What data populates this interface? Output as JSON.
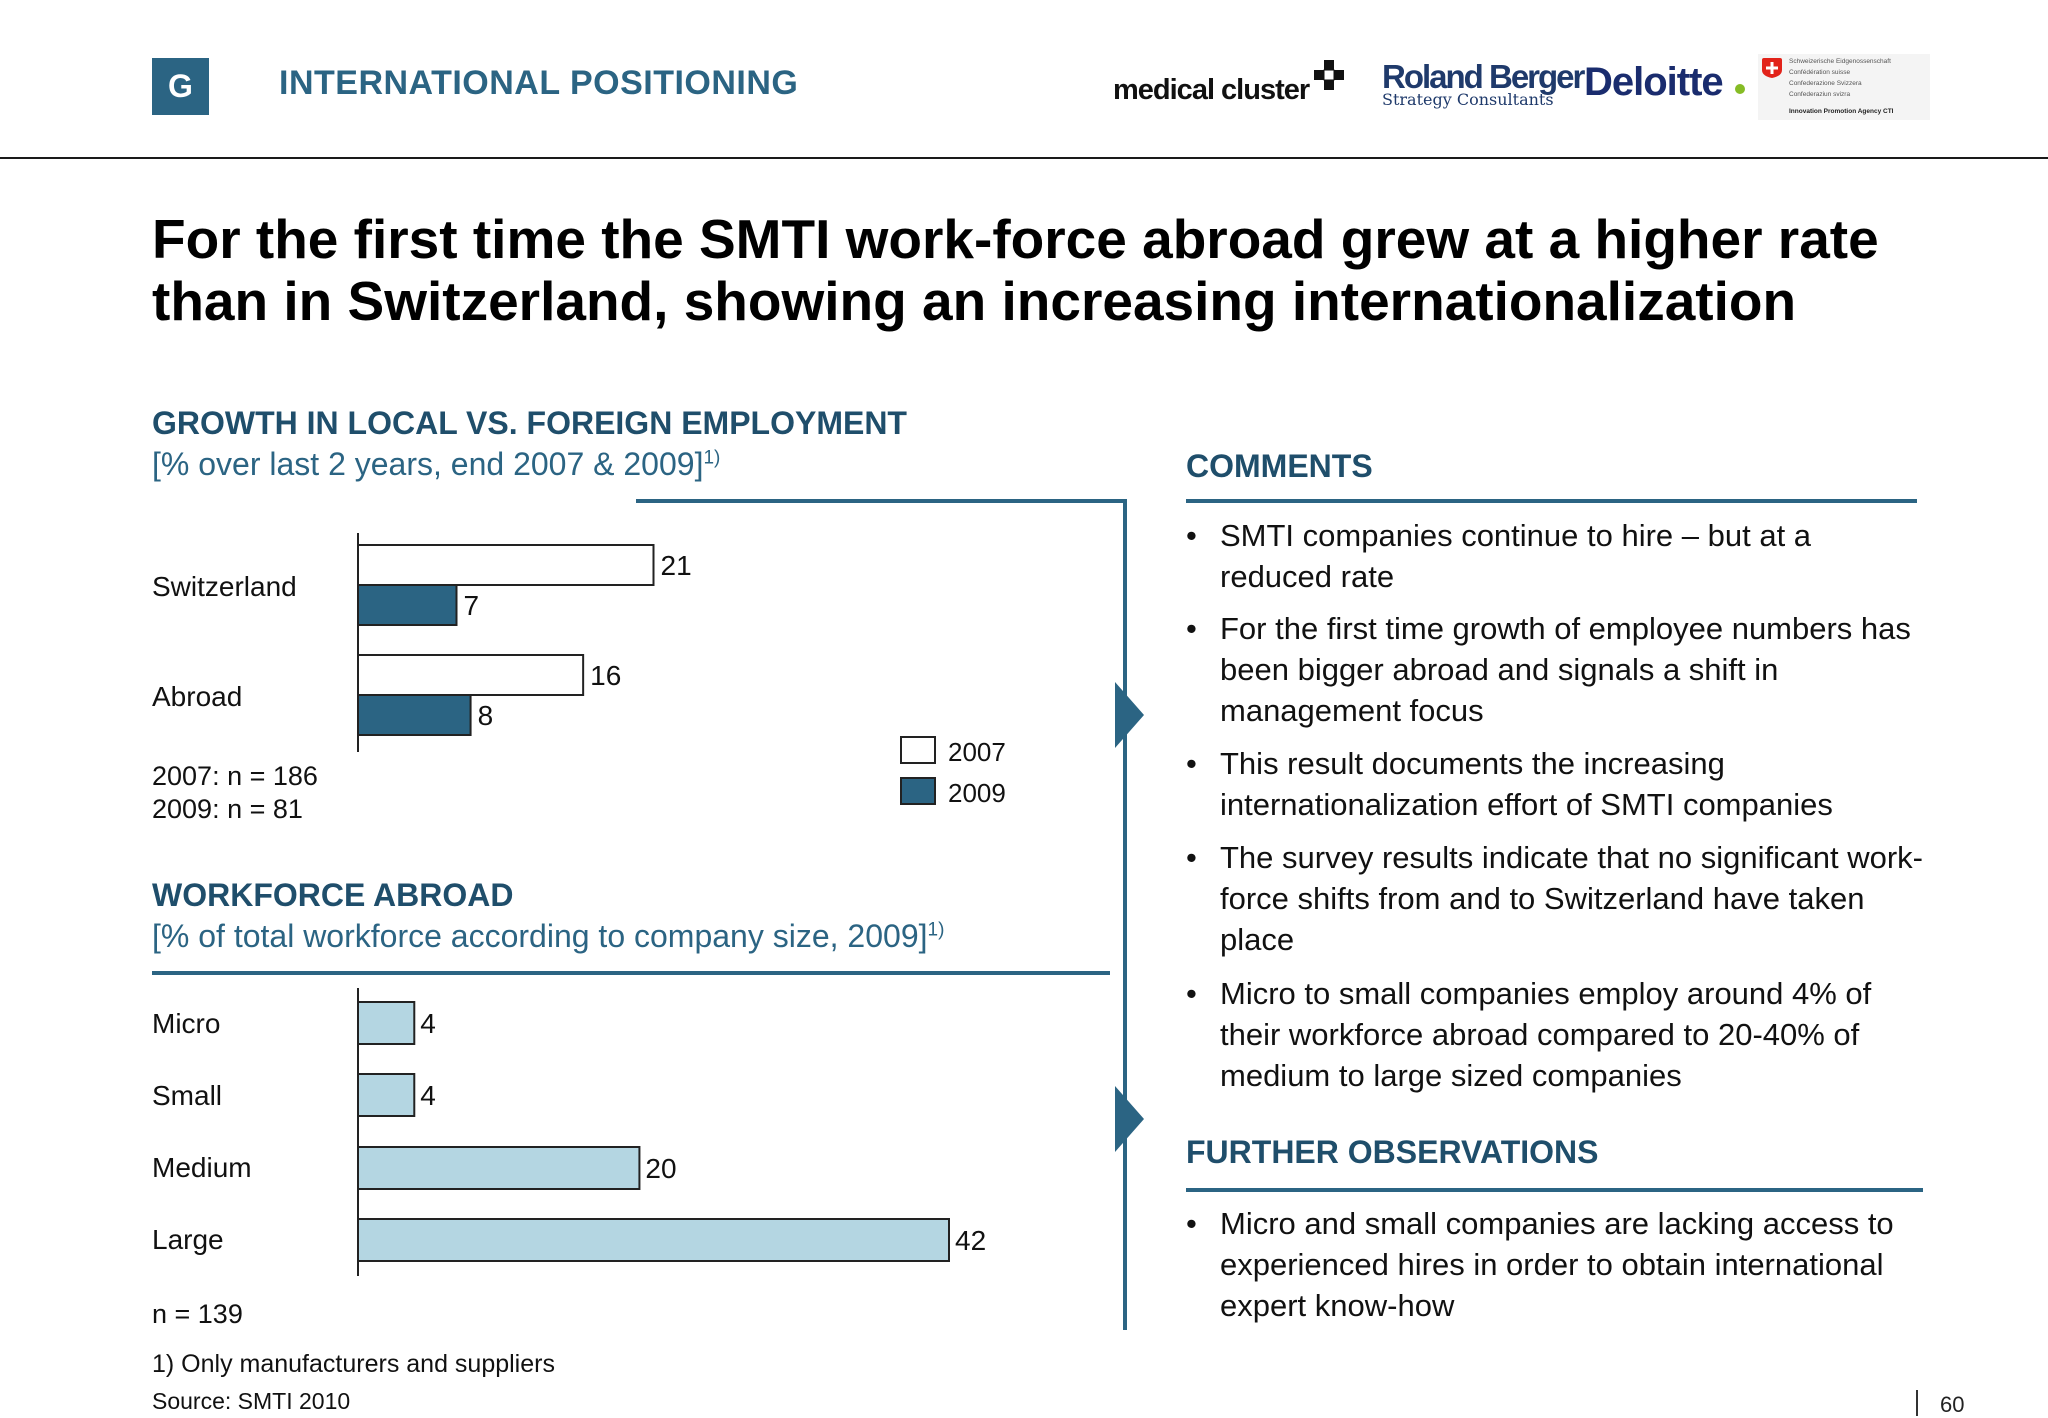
{
  "header": {
    "section_letter": "G",
    "section_title": "INTERNATIONAL POSITIONING",
    "logos": {
      "medical_cluster": "medical cluster",
      "roland_berger_top": "Roland Berger",
      "roland_berger_bottom": "Strategy Consultants",
      "deloitte": "Deloitte",
      "swiss_lines": [
        "Schweizerische Eidgenossenschaft",
        "Confédération suisse",
        "Confederazione Svizzera",
        "Confederaziun svizra"
      ],
      "swiss_cti": "Innovation Promotion Agency CTI"
    }
  },
  "main_title": "For the first time the SMTI work-force abroad grew at a higher rate than in Switzerland, showing an increasing internationalization",
  "chart_data": [
    {
      "type": "bar",
      "orientation": "horizontal",
      "title": "GROWTH IN LOCAL VS. FOREIGN EMPLOYMENT",
      "subtitle": "[% over last 2 years, end 2007 & 2009]",
      "subtitle_sup": "1)",
      "categories": [
        "Switzerland",
        "Abroad"
      ],
      "series": [
        {
          "name": "2007",
          "values": [
            21,
            16
          ],
          "color": "#ffffff"
        },
        {
          "name": "2009",
          "values": [
            7,
            8
          ],
          "color": "#2b6483"
        }
      ],
      "xlim": [
        0,
        42
      ],
      "legend_position": "bottom-right",
      "notes": [
        "2007: n = 186",
        "2009: n = 81"
      ]
    },
    {
      "type": "bar",
      "orientation": "horizontal",
      "title": "WORKFORCE ABROAD",
      "subtitle": "[% of total workforce according to company size, 2009]",
      "subtitle_sup": "1)",
      "categories": [
        "Micro",
        "Small",
        "Medium",
        "Large"
      ],
      "values": [
        4,
        4,
        20,
        42
      ],
      "color": "#b4d6e2",
      "xlim": [
        0,
        42
      ],
      "notes": [
        "n = 139"
      ]
    }
  ],
  "comments": {
    "heading": "COMMENTS",
    "bullets": [
      "SMTI companies continue to hire – but at a reduced rate",
      "For the first time growth of employee numbers has been bigger abroad and signals a shift in management focus",
      "This result documents the increasing internationalization effort of SMTI companies",
      "The survey results indicate that no significant work-force shifts from and to Switzerland have taken place",
      "Micro to small companies employ around 4% of their workforce abroad compared to 20-40% of medium to large sized companies"
    ]
  },
  "further": {
    "heading": "FURTHER OBSERVATIONS",
    "bullets": [
      "Micro and small companies are lacking access to experienced hires in order to obtain international expert know-how"
    ]
  },
  "footer": {
    "footnote": "1) Only manufacturers and suppliers",
    "source": "Source:  SMTI 2010",
    "page_number": "60"
  },
  "colors": {
    "brand": "#2b6483",
    "heading": "#1f4e6b",
    "light_bar": "#b4d6e2"
  }
}
